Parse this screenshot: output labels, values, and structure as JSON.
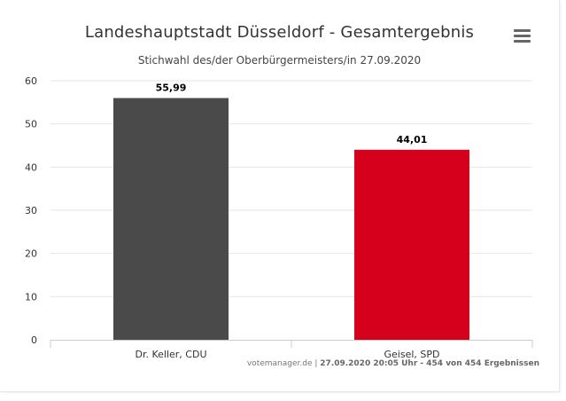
{
  "chart_data": {
    "type": "bar",
    "title": "Landeshauptstadt Düsseldorf - Gesamtergebnis",
    "subtitle": "Stichwahl des/der Oberbürgermeisters/in 27.09.2020",
    "categories": [
      "Dr. Keller, CDU",
      "Geisel, SPD"
    ],
    "values": [
      55.99,
      44.01
    ],
    "data_labels": [
      "55,99",
      "44,01"
    ],
    "colors": [
      "#4a4a4a",
      "#d6001c"
    ],
    "ylim": [
      0,
      60
    ],
    "yticks": [
      0,
      10,
      20,
      30,
      40,
      50,
      60
    ],
    "grid": true,
    "xlabel": "",
    "ylabel": ""
  },
  "menu": {
    "icon": "hamburger-menu-icon"
  },
  "credits": {
    "source": "votemanager.de",
    "separator": " | ",
    "detail": "27.09.2020 20:05 Uhr - 454 von 454 Ergebnissen"
  }
}
